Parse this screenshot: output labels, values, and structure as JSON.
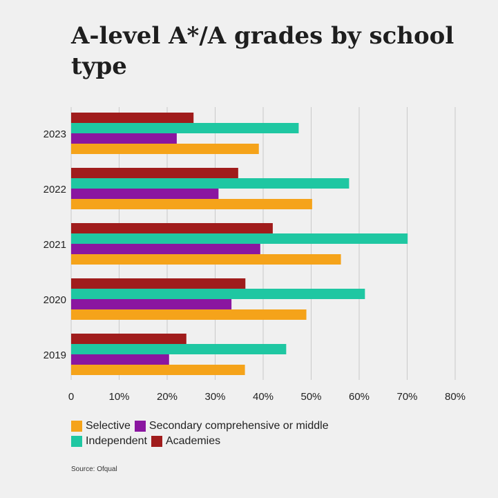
{
  "chart_data": {
    "type": "bar",
    "orientation": "horizontal",
    "title": "A-level A*/A grades by school type",
    "categories": [
      "2023",
      "2022",
      "2021",
      "2020",
      "2019"
    ],
    "xlim": [
      0,
      80
    ],
    "xticks": [
      "0",
      "10%",
      "20%",
      "30%",
      "40%",
      "50%",
      "60%",
      "70%",
      "80%"
    ],
    "grid": true,
    "series": [
      {
        "name": "Academies",
        "color": "#a01c1c",
        "values": [
          25.5,
          34.8,
          42.0,
          36.3,
          24.0
        ]
      },
      {
        "name": "Independent",
        "color": "#1fc7a2",
        "values": [
          47.4,
          57.9,
          70.1,
          61.2,
          44.8
        ]
      },
      {
        "name": "Secondary comprehensive or middle",
        "color": "#8a16a0",
        "values": [
          22.0,
          30.7,
          39.4,
          33.4,
          20.4
        ]
      },
      {
        "name": "Selective",
        "color": "#f5a31a",
        "values": [
          39.1,
          50.2,
          56.2,
          49.0,
          36.2
        ]
      }
    ],
    "legend_position": "bottom-left",
    "source": "Source: Ofqual"
  },
  "legend": [
    [
      {
        "label": "Selective",
        "color": "#f5a31a"
      },
      {
        "label": "Secondary comprehensive or middle",
        "color": "#8a16a0"
      }
    ],
    [
      {
        "label": "Independent",
        "color": "#1fc7a2"
      },
      {
        "label": "Academies",
        "color": "#a01c1c"
      }
    ]
  ]
}
